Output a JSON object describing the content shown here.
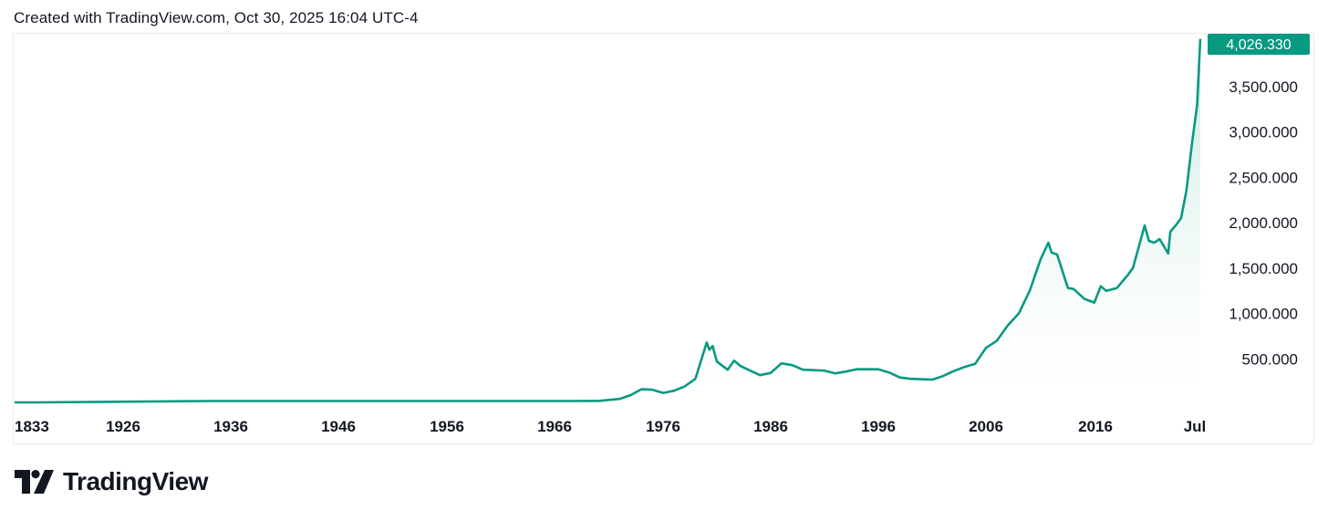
{
  "header": {
    "created_text": "Created with TradingView.com, Oct 30, 2025 16:04 UTC-4"
  },
  "brand": {
    "name": "TradingView",
    "logo_icon": "tradingview-logo-icon"
  },
  "colors": {
    "line": "#089981",
    "fill_top": "#bfe6dc",
    "label_bg": "#089981"
  },
  "chart_data": {
    "type": "area",
    "title": "",
    "xlabel": "",
    "ylabel": "",
    "x_tick_labels": [
      "1833",
      "1926",
      "1936",
      "1946",
      "1956",
      "1966",
      "1976",
      "1986",
      "1996",
      "2006",
      "2016",
      "Jul"
    ],
    "y_tick_labels": [
      "500.000",
      "1,000.000",
      "1,500.000",
      "2,000.000",
      "2,500.000",
      "3,000.000",
      "3,500.000"
    ],
    "ylim": [
      0,
      4100
    ],
    "last_value_label": "4,026.330",
    "grid": false,
    "series": [
      {
        "x": [
          "1833",
          "1920",
          "1934",
          "1968",
          "1970",
          "1972",
          "1973",
          "1974",
          "1975",
          "1976",
          "1977",
          "1978",
          "1979",
          "1980.05",
          "1980.3",
          "1980.6",
          "1981",
          "1982",
          "1982.6",
          "1983.2",
          "1984",
          "1985",
          "1986",
          "1987",
          "1988",
          "1989",
          "1990",
          "1991",
          "1992",
          "1993",
          "1994",
          "1995",
          "1996",
          "1997",
          "1998",
          "1999",
          "2000",
          "2001",
          "2002",
          "2003",
          "2004",
          "2005",
          "2006",
          "2007",
          "2008",
          "2009",
          "2010",
          "2011",
          "2011.7",
          "2012",
          "2012.5",
          "2013.3",
          "2013.5",
          "2014",
          "2015",
          "2015.9",
          "2016.5",
          "2017",
          "2018",
          "2019",
          "2019.5",
          "2020.6",
          "2021",
          "2021.5",
          "2022",
          "2022.8",
          "2023",
          "2023.5",
          "2024",
          "2024.5",
          "2025",
          "2025.5",
          "2025.8"
        ],
        "values": [
          20,
          20,
          35,
          35,
          36,
          58,
          100,
          165,
          160,
          125,
          148,
          195,
          280,
          680,
          600,
          640,
          470,
          380,
          480,
          420,
          375,
          320,
          345,
          450,
          430,
          380,
          375,
          370,
          340,
          360,
          385,
          385,
          385,
          350,
          295,
          280,
          275,
          270,
          310,
          365,
          410,
          445,
          620,
          700,
          870,
          1000,
          1250,
          1600,
          1780,
          1670,
          1650,
          1350,
          1280,
          1270,
          1160,
          1120,
          1300,
          1250,
          1280,
          1420,
          1500,
          1970,
          1800,
          1780,
          1820,
          1660,
          1900,
          1970,
          2050,
          2350,
          2850,
          3300,
          4026
        ]
      }
    ]
  }
}
